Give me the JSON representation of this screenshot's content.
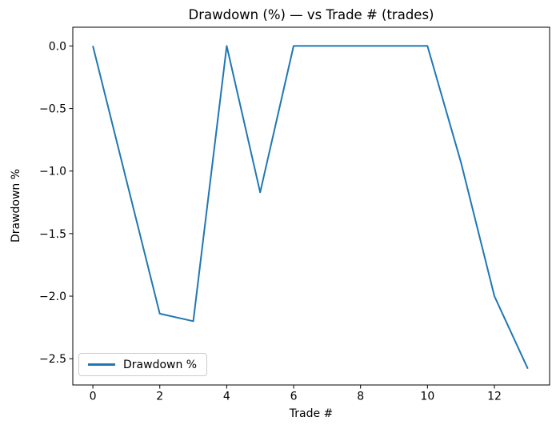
{
  "chart_data": {
    "type": "line",
    "title": "Drawdown (%) — vs Trade # (trades)",
    "xlabel": "Trade #",
    "ylabel": "Drawdown %",
    "x": [
      0,
      1,
      2,
      3,
      4,
      5,
      6,
      7,
      8,
      9,
      10,
      11,
      12,
      13
    ],
    "series": [
      {
        "name": "Drawdown %",
        "color": "#1f77b4",
        "values": [
          0.0,
          -1.07,
          -2.14,
          -2.2,
          0.0,
          -1.17,
          0.0,
          0.0,
          0.0,
          0.0,
          0.0,
          -0.93,
          -2.0,
          -2.58
        ]
      }
    ],
    "xlim": [
      -0.6,
      13.65
    ],
    "ylim": [
      -2.71,
      0.15
    ],
    "xticks": [
      0,
      2,
      4,
      6,
      8,
      10,
      12
    ],
    "yticks": [
      0.0,
      -0.5,
      -1.0,
      -1.5,
      -2.0,
      -2.5
    ],
    "xtick_labels": [
      "0",
      "2",
      "4",
      "6",
      "8",
      "10",
      "12"
    ],
    "ytick_labels": [
      "0.0",
      "−0.5",
      "−1.0",
      "−1.5",
      "−2.0",
      "−2.5"
    ],
    "grid": false,
    "legend": {
      "position": "lower left",
      "entries": [
        "Drawdown %"
      ]
    },
    "colors": {
      "line": "#1f77b4",
      "spine": "#000000",
      "background": "#ffffff",
      "legend_border": "#cccccc"
    }
  }
}
